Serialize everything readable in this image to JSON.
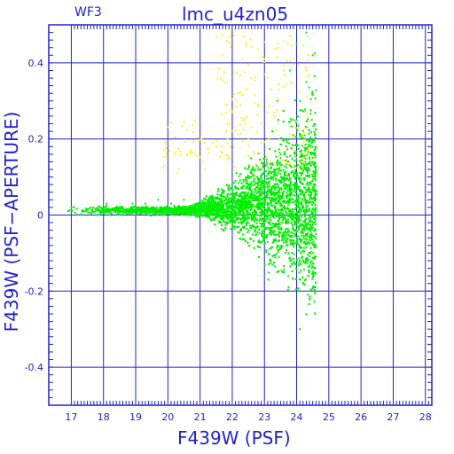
{
  "chart_data": {
    "type": "scatter",
    "panel_label": "WF3",
    "title": "lmc_u4zn05",
    "xlabel": "F439W (PSF)",
    "ylabel": "F439W (PSF−APERTURE)",
    "xlim": [
      16.3,
      28.2
    ],
    "ylim": [
      -0.5,
      0.5
    ],
    "xticks": [
      17,
      18,
      19,
      20,
      21,
      22,
      23,
      24,
      25,
      26,
      27,
      28
    ],
    "yticks": [
      -0.4,
      -0.2,
      0,
      0.2,
      0.4
    ],
    "grid": true,
    "axis_color": "#2222cc",
    "series": [
      {
        "color": "#00ee00",
        "values_note": "dense cloud: near zero at bright magnitudes, widening toward faint limit ~24.6",
        "points": [
          [
            16.9,
            0.01
          ],
          [
            17.0,
            0.02
          ],
          [
            17.4,
            0.01
          ],
          [
            17.6,
            0.02
          ],
          [
            17.8,
            0.0
          ],
          [
            18.0,
            0.01
          ],
          [
            18.1,
            0.03
          ],
          [
            18.2,
            0.0
          ],
          [
            18.4,
            0.02
          ],
          [
            18.6,
            0.0
          ],
          [
            18.7,
            0.01
          ],
          [
            18.9,
            0.03
          ],
          [
            19.0,
            0.0
          ],
          [
            19.1,
            0.02
          ],
          [
            19.2,
            0.01
          ],
          [
            19.3,
            0.03
          ],
          [
            19.4,
            0.0
          ],
          [
            19.5,
            0.02
          ],
          [
            19.6,
            0.01
          ],
          [
            19.7,
            0.04
          ],
          [
            19.8,
            0.0
          ],
          [
            19.9,
            0.02
          ],
          [
            20.0,
            0.01
          ],
          [
            20.1,
            0.03
          ],
          [
            20.2,
            0.0
          ],
          [
            20.3,
            0.02
          ],
          [
            20.4,
            0.01
          ],
          [
            20.5,
            0.04
          ],
          [
            20.6,
            0.0
          ],
          [
            20.7,
            0.02
          ],
          [
            20.8,
            0.01
          ],
          [
            20.9,
            0.03
          ],
          [
            21.0,
            0.0
          ],
          [
            21.1,
            0.02
          ],
          [
            21.2,
            0.05
          ],
          [
            21.3,
            0.01
          ],
          [
            21.4,
            -0.01
          ],
          [
            21.5,
            0.03
          ],
          [
            21.6,
            0.02
          ],
          [
            21.7,
            0.06
          ],
          [
            21.8,
            0.0
          ],
          [
            21.9,
            0.04
          ],
          [
            22.0,
            0.02
          ],
          [
            22.1,
            0.07
          ],
          [
            22.2,
            -0.02
          ],
          [
            22.3,
            0.05
          ],
          [
            22.4,
            0.03
          ],
          [
            22.5,
            0.08
          ],
          [
            22.6,
            -0.03
          ],
          [
            22.7,
            0.06
          ],
          [
            22.8,
            0.02
          ],
          [
            22.9,
            0.1
          ],
          [
            23.0,
            -0.05
          ],
          [
            23.1,
            0.08
          ],
          [
            23.2,
            0.03
          ],
          [
            23.3,
            0.12
          ],
          [
            23.4,
            -0.08
          ],
          [
            23.5,
            0.15
          ],
          [
            23.6,
            0.02
          ],
          [
            23.7,
            0.2
          ],
          [
            23.8,
            -0.12
          ],
          [
            23.9,
            0.25
          ],
          [
            24.0,
            0.05
          ],
          [
            24.1,
            0.3
          ],
          [
            24.2,
            -0.18
          ],
          [
            24.3,
            0.35
          ],
          [
            24.4,
            0.1
          ],
          [
            24.5,
            0.42
          ],
          [
            24.6,
            -0.05
          ],
          [
            24.4,
            -0.22
          ],
          [
            24.1,
            -0.3
          ],
          [
            24.3,
            0.48
          ],
          [
            23.8,
            0.38
          ],
          [
            23.6,
            -0.15
          ],
          [
            24.0,
            0.45
          ],
          [
            23.4,
            0.3
          ]
        ]
      },
      {
        "color": "#ffee22",
        "values_note": "sparser yellow points, mostly positive offsets",
        "points": [
          [
            19.9,
            0.13
          ],
          [
            20.3,
            0.11
          ],
          [
            20.7,
            0.16
          ],
          [
            21.1,
            0.14
          ],
          [
            21.5,
            0.18
          ],
          [
            21.8,
            0.22
          ],
          [
            22.0,
            0.27
          ],
          [
            22.2,
            0.32
          ],
          [
            22.4,
            0.24
          ],
          [
            22.6,
            0.36
          ],
          [
            22.8,
            0.29
          ],
          [
            23.0,
            0.41
          ],
          [
            23.2,
            0.33
          ],
          [
            23.4,
            0.45
          ],
          [
            23.6,
            0.38
          ],
          [
            23.8,
            0.47
          ],
          [
            22.9,
            0.19
          ],
          [
            22.5,
            0.2
          ],
          [
            21.9,
            0.15
          ],
          [
            23.3,
            0.26
          ]
        ]
      }
    ]
  }
}
